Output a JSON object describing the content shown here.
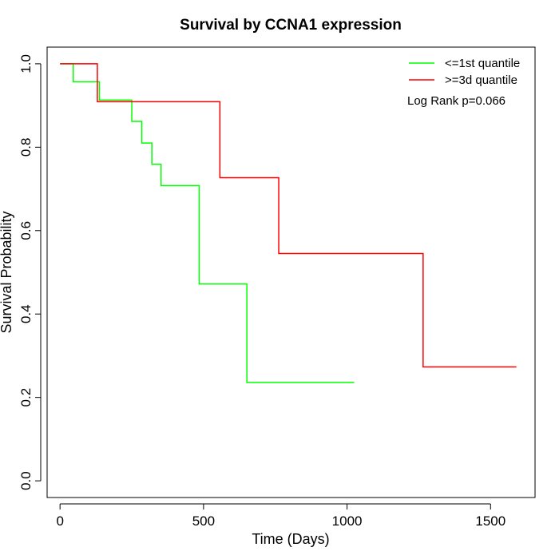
{
  "chart_data": {
    "type": "line",
    "title": "Survival by CCNA1 expression",
    "xlabel": "Time (Days)",
    "ylabel": "Survival Probability",
    "xlim": [
      -45,
      1655
    ],
    "ylim": [
      -0.04,
      1.04
    ],
    "x_ticks": [
      0,
      500,
      1000,
      1500
    ],
    "x_tick_labels": [
      "0",
      "500",
      "1000",
      "1500"
    ],
    "y_ticks": [
      0.0,
      0.2,
      0.4,
      0.6,
      0.8,
      1.0
    ],
    "y_tick_labels": [
      "0.0",
      "0.2",
      "0.4",
      "0.6",
      "0.8",
      "1.0"
    ],
    "grid": false,
    "legend_position": "top-right",
    "annotation": "Log Rank p=0.066",
    "series": [
      {
        "name": "<=1st quantile",
        "color": "#00ff00",
        "step": true,
        "x": [
          0,
          46,
          137,
          250,
          285,
          320,
          352,
          485,
          651,
          1025
        ],
        "y": [
          1.0,
          0.957,
          0.913,
          0.862,
          0.81,
          0.759,
          0.708,
          0.472,
          0.236,
          0.236
        ]
      },
      {
        "name": ">=3d quantile",
        "color": "#ff0000",
        "step": true,
        "x": [
          0,
          130,
          557,
          762,
          1265,
          1590
        ],
        "y": [
          1.0,
          0.909,
          0.727,
          0.545,
          0.273,
          0.273
        ]
      }
    ]
  }
}
